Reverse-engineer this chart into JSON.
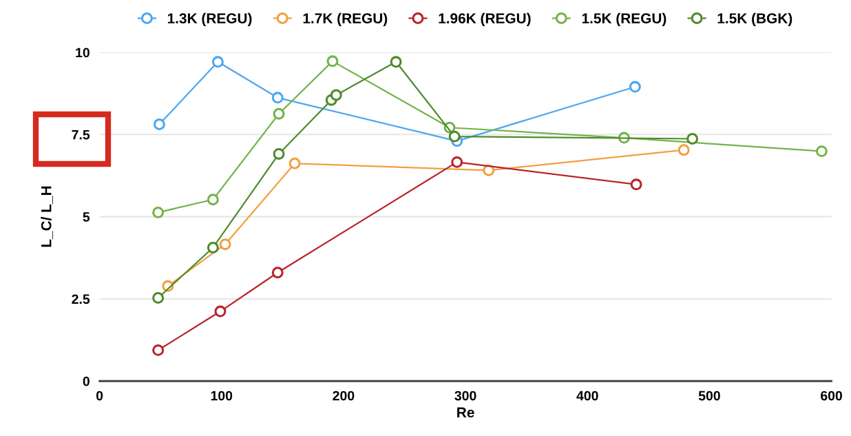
{
  "chart_data": {
    "type": "line",
    "xlabel": "Re",
    "ylabel": "L_C/ L_H",
    "xlim": [
      0,
      600
    ],
    "xticks": [
      0,
      100,
      200,
      300,
      400,
      500,
      600
    ],
    "ylim": [
      0,
      10
    ],
    "yticks": [
      0,
      2.5,
      5,
      7.5,
      10
    ],
    "grid": "y",
    "legend": "top",
    "marker": "circle",
    "series": [
      {
        "name": "1.3K (REGU)",
        "color": "#4da6f0",
        "x": [
          49,
          97,
          146,
          293,
          439
        ],
        "values": [
          7.81,
          9.71,
          8.62,
          7.3,
          8.95
        ]
      },
      {
        "name": "1.7K (REGU)",
        "color": "#f0a040",
        "x": [
          56,
          103,
          160,
          319,
          479
        ],
        "values": [
          2.89,
          4.16,
          6.62,
          6.41,
          7.03
        ]
      },
      {
        "name": "1.96K (REGU)",
        "color": "#b8232a",
        "x": [
          48,
          99,
          146,
          293,
          440
        ],
        "values": [
          0.94,
          2.12,
          3.3,
          6.66,
          5.98
        ]
      },
      {
        "name": "1.5K (REGU)",
        "color": "#74b34a",
        "x": [
          48,
          93,
          147,
          191,
          287,
          430,
          592
        ],
        "values": [
          5.13,
          5.52,
          8.13,
          9.73,
          7.71,
          7.4,
          6.99
        ]
      },
      {
        "name": "1.5K (BGK)",
        "color": "#4f8a2c",
        "x": [
          48,
          93,
          147,
          190,
          194,
          243,
          291,
          486
        ],
        "values": [
          2.53,
          4.06,
          6.91,
          8.55,
          8.7,
          9.71,
          7.44,
          7.37
        ]
      }
    ]
  }
}
